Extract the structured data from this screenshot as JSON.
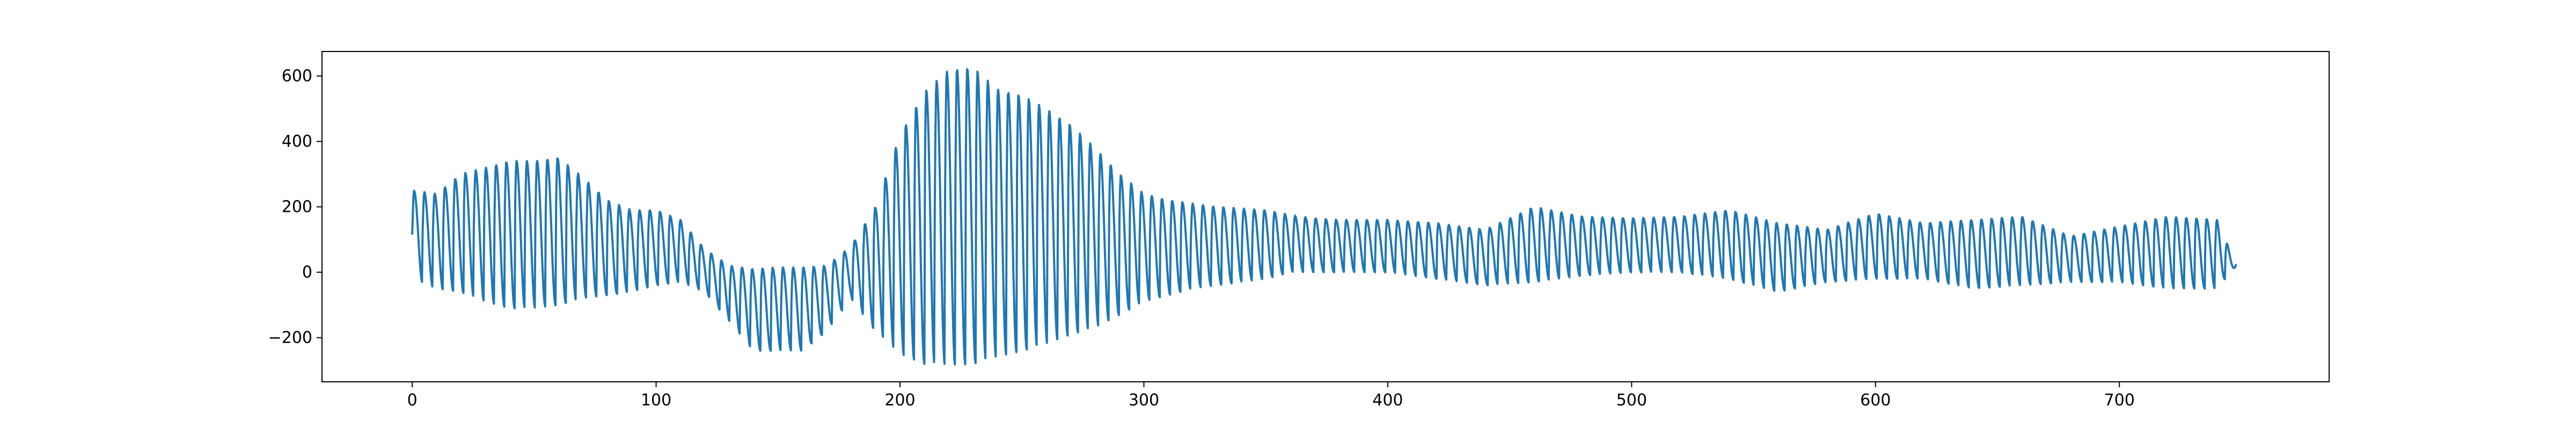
{
  "chart_data": {
    "type": "line",
    "title": "",
    "xlabel": "",
    "ylabel": "",
    "xlim": [
      -37,
      786
    ],
    "ylim": [
      -335,
      675
    ],
    "xticks": [
      0,
      100,
      200,
      300,
      400,
      500,
      600,
      700
    ],
    "yticks": [
      -200,
      0,
      200,
      400,
      600
    ],
    "xtick_labels": [
      "0",
      "100",
      "200",
      "300",
      "400",
      "500",
      "600",
      "700"
    ],
    "ytick_labels": [
      "−200",
      "0",
      "200",
      "400",
      "600"
    ],
    "grid": false,
    "legend": "none",
    "colors": {
      "line": "#1f77b4",
      "axes": "#000000",
      "background": "#ffffff"
    },
    "series": [
      {
        "envelope": {
          "x": [
            0,
            10,
            20,
            30,
            40,
            50,
            60,
            70,
            80,
            90,
            100,
            110,
            120,
            130,
            140,
            150,
            160,
            170,
            180,
            190,
            200,
            210,
            220,
            230,
            240,
            250,
            260,
            270,
            280,
            290,
            300,
            310,
            320,
            330,
            340,
            350,
            360,
            370,
            380,
            390,
            400,
            420,
            440,
            460,
            480,
            500,
            520,
            540,
            560,
            580,
            600,
            620,
            640,
            660,
            680,
            700,
            720,
            740,
            748
          ],
          "upper": [
            250,
            240,
            300,
            320,
            340,
            340,
            350,
            290,
            220,
            190,
            190,
            160,
            70,
            20,
            10,
            15,
            15,
            20,
            80,
            200,
            420,
            550,
            620,
            625,
            560,
            540,
            500,
            450,
            380,
            300,
            240,
            220,
            210,
            200,
            195,
            190,
            175,
            165,
            160,
            160,
            160,
            150,
            130,
            200,
            170,
            165,
            170,
            190,
            150,
            130,
            180,
            150,
            160,
            170,
            110,
            140,
            170,
            160,
            20
          ],
          "lower": [
            -20,
            -50,
            -60,
            -90,
            -110,
            -110,
            -100,
            -80,
            -70,
            -60,
            -40,
            -30,
            -60,
            -150,
            -240,
            -240,
            -240,
            -180,
            -80,
            -180,
            -250,
            -280,
            -285,
            -280,
            -260,
            -240,
            -220,
            -190,
            -170,
            -130,
            -90,
            -70,
            -50,
            -40,
            -30,
            -20,
            0,
            0,
            0,
            0,
            0,
            -20,
            -40,
            -30,
            -10,
            0,
            0,
            -20,
            -60,
            -30,
            -20,
            -20,
            -50,
            -40,
            -30,
            -30,
            -50,
            -50,
            20
          ]
        }
      }
    ]
  }
}
